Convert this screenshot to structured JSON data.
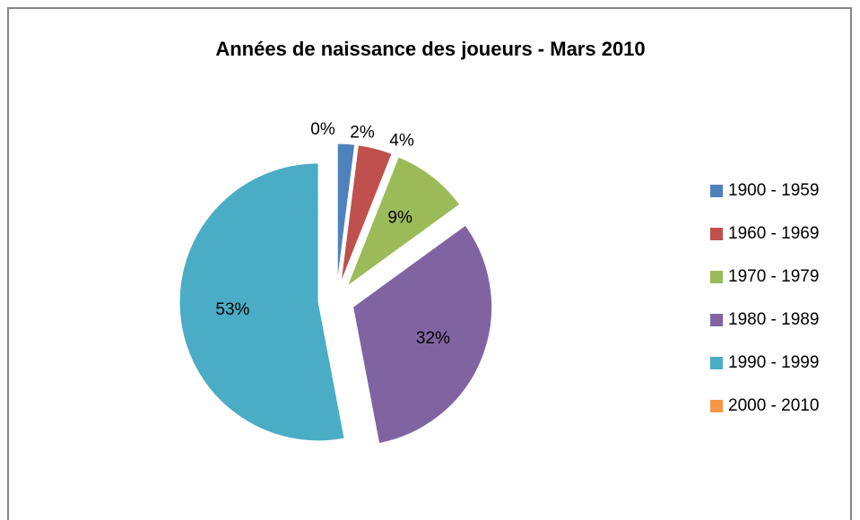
{
  "chart_data": {
    "type": "pie",
    "title": "Années de naissance des joueurs - Mars 2010",
    "categories": [
      "1900 - 1959",
      "1960 - 1969",
      "1970 - 1979",
      "1980 - 1989",
      "1990 - 1999",
      "2000 - 2010"
    ],
    "values": [
      2,
      4,
      9,
      32,
      53,
      0
    ],
    "value_labels": [
      "2%",
      "4%",
      "9%",
      "32%",
      "53%",
      "0%"
    ],
    "colors": [
      "#4f81bd",
      "#c0504d",
      "#9bbb59",
      "#8064a2",
      "#4bacc6",
      "#f79646"
    ],
    "legend": "right"
  }
}
